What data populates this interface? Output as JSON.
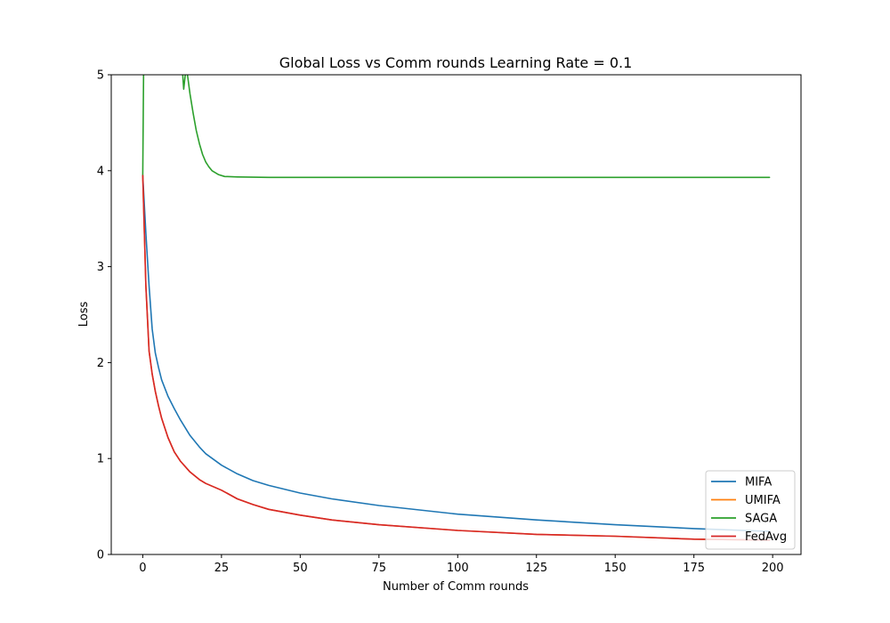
{
  "chart_data": {
    "type": "line",
    "title": "Global Loss vs Comm rounds Learning Rate = 0.1",
    "xlabel": "Number of Comm rounds",
    "ylabel": "Loss",
    "xlim": [
      -10,
      209
    ],
    "ylim": [
      0,
      5
    ],
    "xticks": [
      0,
      25,
      50,
      75,
      100,
      125,
      150,
      175,
      200
    ],
    "yticks": [
      0,
      1,
      2,
      3,
      4,
      5
    ],
    "xtick_labels": [
      "0",
      "25",
      "50",
      "75",
      "100",
      "125",
      "150",
      "175",
      "200"
    ],
    "ytick_labels": [
      "0",
      "1",
      "2",
      "3",
      "4",
      "5"
    ],
    "grid": false,
    "legend_position": "lower-right",
    "series": [
      {
        "name": "MIFA",
        "color": "#1f77b4",
        "x": [
          0,
          1,
          2,
          3,
          4,
          5,
          6,
          8,
          10,
          12,
          15,
          18,
          20,
          25,
          30,
          35,
          40,
          50,
          60,
          75,
          100,
          125,
          150,
          175,
          199
        ],
        "y": [
          3.95,
          3.35,
          2.8,
          2.35,
          2.1,
          1.95,
          1.82,
          1.65,
          1.52,
          1.4,
          1.24,
          1.12,
          1.05,
          0.93,
          0.84,
          0.77,
          0.72,
          0.64,
          0.58,
          0.51,
          0.42,
          0.36,
          0.31,
          0.27,
          0.24
        ]
      },
      {
        "name": "UMIFA",
        "color": "#ff7f0e",
        "x": [
          0,
          1,
          2,
          3,
          4,
          5,
          6,
          8,
          10,
          12,
          15,
          18,
          20,
          25,
          30,
          35,
          40,
          50,
          60,
          75,
          100,
          125,
          150,
          175,
          199
        ],
        "y": [
          3.95,
          2.8,
          2.12,
          1.88,
          1.7,
          1.55,
          1.42,
          1.22,
          1.07,
          0.97,
          0.86,
          0.78,
          0.74,
          0.67,
          0.58,
          0.52,
          0.47,
          0.41,
          0.36,
          0.31,
          0.25,
          0.21,
          0.19,
          0.16,
          0.15
        ]
      },
      {
        "name": "SAGA",
        "color": "#2ca02c",
        "x": [
          0,
          0.3,
          12.5,
          13,
          13.5,
          14,
          15,
          16,
          17,
          18,
          19,
          20,
          21,
          22,
          24,
          26,
          30,
          40,
          60,
          100,
          150,
          199
        ],
        "y": [
          3.95,
          5.1,
          5.1,
          4.85,
          5.0,
          5.05,
          4.8,
          4.6,
          4.42,
          4.28,
          4.17,
          4.09,
          4.04,
          4.0,
          3.96,
          3.94,
          3.935,
          3.93,
          3.93,
          3.93,
          3.93,
          3.93
        ]
      },
      {
        "name": "FedAvg",
        "color": "#d62728",
        "x": [
          0,
          1,
          2,
          3,
          4,
          5,
          6,
          8,
          10,
          12,
          15,
          18,
          20,
          25,
          30,
          35,
          40,
          50,
          60,
          75,
          100,
          125,
          150,
          175,
          199
        ],
        "y": [
          3.95,
          2.8,
          2.12,
          1.88,
          1.7,
          1.55,
          1.42,
          1.22,
          1.07,
          0.97,
          0.86,
          0.78,
          0.74,
          0.67,
          0.58,
          0.52,
          0.47,
          0.41,
          0.36,
          0.31,
          0.25,
          0.21,
          0.19,
          0.16,
          0.15
        ]
      }
    ]
  }
}
